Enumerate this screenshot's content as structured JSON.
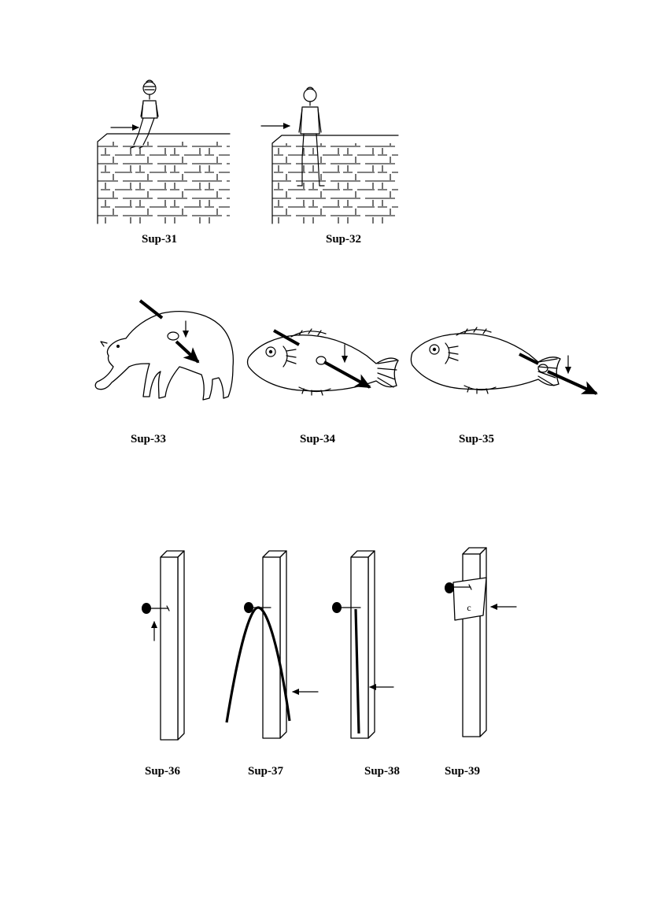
{
  "figures": [
    {
      "id": "sup31",
      "caption": "Sup-31"
    },
    {
      "id": "sup32",
      "caption": "Sup-32"
    },
    {
      "id": "sup33",
      "caption": "Sup-33"
    },
    {
      "id": "sup34",
      "caption": "Sup-34"
    },
    {
      "id": "sup35",
      "caption": "Sup-35"
    },
    {
      "id": "sup36",
      "caption": "Sup-36"
    },
    {
      "id": "sup37",
      "caption": "Sup-37"
    },
    {
      "id": "sup38",
      "caption": "Sup-38"
    },
    {
      "id": "sup39",
      "caption": "Sup-39",
      "paper_label": "c"
    }
  ]
}
